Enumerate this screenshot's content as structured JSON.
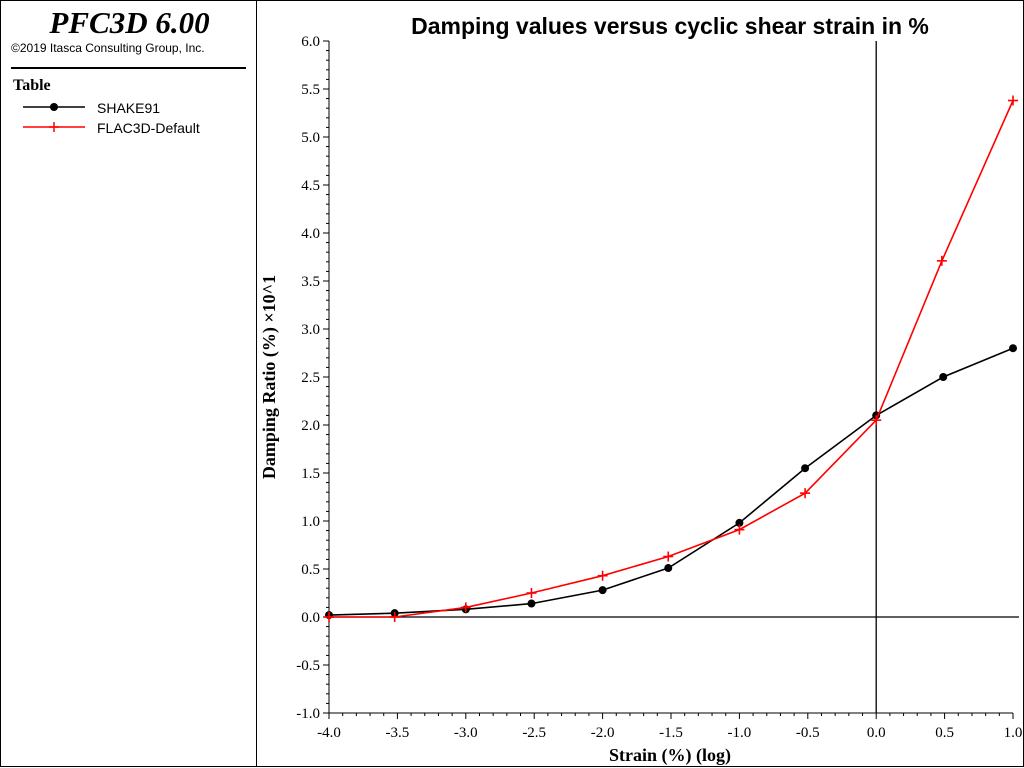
{
  "header": {
    "product": "PFC3D 6.00",
    "copyright": "©2019 Itasca Consulting Group, Inc."
  },
  "legend": {
    "title": "Table",
    "items": [
      {
        "label": "SHAKE91",
        "color": "#000000",
        "marker": "filled-circle"
      },
      {
        "label": "FLAC3D-Default",
        "color": "#ff0000",
        "marker": "plus"
      }
    ]
  },
  "chart_data": {
    "type": "line",
    "title": "Damping values versus cyclic shear strain in %",
    "xlabel": "Strain (%) (log)",
    "ylabel": "Damping Ratio (%) ×10^1",
    "xlim": [
      -4.0,
      1.0
    ],
    "ylim": [
      -1.0,
      6.0
    ],
    "xticks": [
      "-4.0",
      "-3.5",
      "-3.0",
      "-2.5",
      "-2.0",
      "-1.5",
      "-1.0",
      "-0.5",
      "0.0",
      "0.5",
      "1.0"
    ],
    "yticks": [
      "-1.0",
      "-0.5",
      "0.0",
      "0.5",
      "1.0",
      "1.5",
      "2.0",
      "2.5",
      "3.0",
      "3.5",
      "4.0",
      "4.5",
      "5.0",
      "5.5",
      "6.0"
    ],
    "grid": false,
    "legend_position": "left panel",
    "series": [
      {
        "name": "SHAKE91",
        "color": "#000000",
        "marker": "circle",
        "x": [
          -4.0,
          -3.52,
          -3.0,
          -2.52,
          -2.0,
          -1.52,
          -1.0,
          -0.52,
          0.0,
          0.49,
          1.0
        ],
        "y": [
          0.02,
          0.04,
          0.08,
          0.14,
          0.28,
          0.51,
          0.98,
          1.55,
          2.1,
          2.5,
          2.8
        ]
      },
      {
        "name": "FLAC3D-Default",
        "color": "#ff0000",
        "marker": "plus",
        "x": [
          -4.0,
          -3.52,
          -3.0,
          -2.52,
          -2.0,
          -1.52,
          -1.0,
          -0.52,
          0.0,
          0.48,
          1.0
        ],
        "y": [
          0.0,
          0.0,
          0.1,
          0.25,
          0.43,
          0.63,
          0.91,
          1.29,
          2.05,
          3.71,
          5.38
        ]
      }
    ]
  }
}
